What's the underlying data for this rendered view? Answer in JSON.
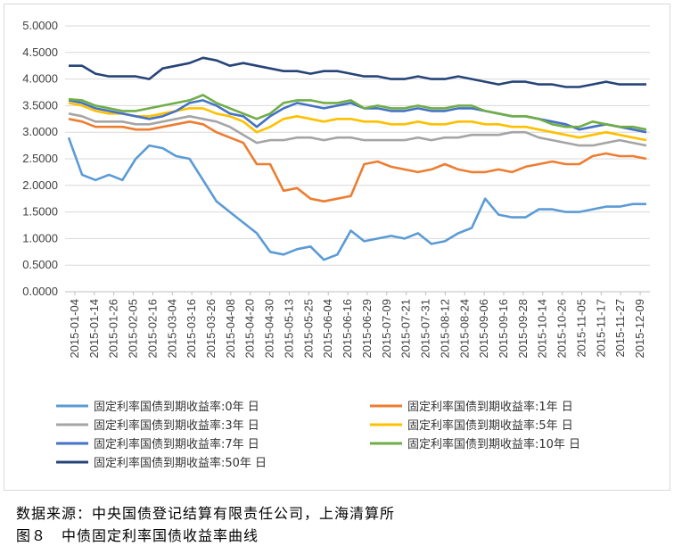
{
  "chart_data": {
    "type": "line",
    "title": "",
    "xlabel": "",
    "ylabel": "",
    "ylim": [
      0,
      5
    ],
    "yticks": [
      "0.0000",
      "0.5000",
      "1.0000",
      "1.5000",
      "2.0000",
      "2.5000",
      "3.0000",
      "3.5000",
      "4.0000",
      "4.5000",
      "5.0000"
    ],
    "grid": "horizontal",
    "legend_position": "bottom",
    "x_ticks": [
      "2015-01-04",
      "2015-01-14",
      "2015-01-26",
      "2015-02-05",
      "2015-02-16",
      "2015-03-04",
      "2015-03-16",
      "2015-03-26",
      "2015-04-08",
      "2015-04-20",
      "2015-04-30",
      "2015-05-13",
      "2015-05-25",
      "2015-06-04",
      "2015-06-16",
      "2015-06-29",
      "2015-07-09",
      "2015-07-21",
      "2015-07-31",
      "2015-08-12",
      "2015-08-24",
      "2015-09-06",
      "2015-09-16",
      "2015-09-28",
      "2015-10-14",
      "2015-10-26",
      "2015-11-05",
      "2015-11-17",
      "2015-11-27",
      "2015-12-09"
    ],
    "series": [
      {
        "name": "固定利率国债到期收益率:0年 日",
        "color": "#5b9bd5",
        "values": [
          2.9,
          2.2,
          2.1,
          2.2,
          2.1,
          2.5,
          2.75,
          2.7,
          2.55,
          2.5,
          2.1,
          1.7,
          1.5,
          1.3,
          1.1,
          0.75,
          0.7,
          0.8,
          0.85,
          0.6,
          0.7,
          1.15,
          0.95,
          1.0,
          1.05,
          1.0,
          1.1,
          0.9,
          0.95,
          1.1,
          1.2,
          1.75,
          1.45,
          1.4,
          1.4,
          1.55,
          1.55,
          1.5,
          1.5,
          1.55,
          1.6,
          1.6,
          1.65,
          1.65
        ]
      },
      {
        "name": "固定利率国债到期收益率:1年 日",
        "color": "#ed7d31",
        "values": [
          3.25,
          3.2,
          3.1,
          3.1,
          3.1,
          3.05,
          3.05,
          3.1,
          3.15,
          3.2,
          3.15,
          3.0,
          2.9,
          2.8,
          2.4,
          2.4,
          1.9,
          1.95,
          1.75,
          1.7,
          1.75,
          1.8,
          2.4,
          2.45,
          2.35,
          2.3,
          2.25,
          2.3,
          2.4,
          2.3,
          2.25,
          2.25,
          2.3,
          2.25,
          2.35,
          2.4,
          2.45,
          2.4,
          2.4,
          2.55,
          2.6,
          2.55,
          2.55,
          2.5
        ]
      },
      {
        "name": "固定利率国债到期收益率:3年 日",
        "color": "#a5a5a5",
        "values": [
          3.35,
          3.3,
          3.2,
          3.2,
          3.2,
          3.15,
          3.15,
          3.2,
          3.25,
          3.3,
          3.25,
          3.2,
          3.1,
          2.95,
          2.8,
          2.85,
          2.85,
          2.9,
          2.9,
          2.85,
          2.9,
          2.9,
          2.85,
          2.85,
          2.85,
          2.85,
          2.9,
          2.85,
          2.9,
          2.9,
          2.95,
          2.95,
          2.95,
          3.0,
          3.0,
          2.9,
          2.85,
          2.8,
          2.75,
          2.75,
          2.8,
          2.85,
          2.8,
          2.75
        ]
      },
      {
        "name": "固定利率国债到期收益率:5年 日",
        "color": "#ffc000",
        "values": [
          3.55,
          3.5,
          3.4,
          3.35,
          3.35,
          3.3,
          3.3,
          3.35,
          3.4,
          3.45,
          3.45,
          3.35,
          3.3,
          3.2,
          3.0,
          3.1,
          3.25,
          3.3,
          3.25,
          3.2,
          3.25,
          3.25,
          3.2,
          3.2,
          3.15,
          3.15,
          3.2,
          3.15,
          3.15,
          3.2,
          3.2,
          3.15,
          3.15,
          3.1,
          3.1,
          3.05,
          3.0,
          2.95,
          2.9,
          2.95,
          3.0,
          2.95,
          2.9,
          2.85
        ]
      },
      {
        "name": "固定利率国债到期收益率:7年 日",
        "color": "#4472c4",
        "values": [
          3.6,
          3.55,
          3.45,
          3.4,
          3.35,
          3.3,
          3.25,
          3.3,
          3.4,
          3.55,
          3.6,
          3.5,
          3.35,
          3.3,
          3.1,
          3.3,
          3.45,
          3.55,
          3.5,
          3.45,
          3.5,
          3.55,
          3.45,
          3.45,
          3.4,
          3.4,
          3.45,
          3.4,
          3.4,
          3.45,
          3.45,
          3.4,
          3.35,
          3.3,
          3.3,
          3.25,
          3.2,
          3.15,
          3.05,
          3.1,
          3.15,
          3.1,
          3.05,
          3.0
        ]
      },
      {
        "name": "固定利率国债到期收益率:10年 日",
        "color": "#70ad47",
        "values": [
          3.62,
          3.6,
          3.5,
          3.45,
          3.4,
          3.4,
          3.45,
          3.5,
          3.55,
          3.6,
          3.7,
          3.55,
          3.45,
          3.35,
          3.25,
          3.35,
          3.55,
          3.6,
          3.6,
          3.55,
          3.55,
          3.6,
          3.45,
          3.5,
          3.45,
          3.45,
          3.5,
          3.45,
          3.45,
          3.5,
          3.5,
          3.4,
          3.35,
          3.3,
          3.3,
          3.25,
          3.15,
          3.1,
          3.1,
          3.2,
          3.15,
          3.1,
          3.1,
          3.05
        ]
      },
      {
        "name": "固定利率国债到期收益率:50年 日",
        "color": "#264478",
        "values": [
          4.25,
          4.25,
          4.1,
          4.05,
          4.05,
          4.05,
          4.0,
          4.2,
          4.25,
          4.3,
          4.4,
          4.35,
          4.25,
          4.3,
          4.25,
          4.2,
          4.15,
          4.15,
          4.1,
          4.15,
          4.15,
          4.1,
          4.05,
          4.05,
          4.0,
          4.0,
          4.05,
          4.0,
          4.0,
          4.05,
          4.0,
          3.95,
          3.9,
          3.95,
          3.95,
          3.9,
          3.9,
          3.85,
          3.85,
          3.9,
          3.95,
          3.9,
          3.9,
          3.9
        ]
      }
    ]
  },
  "footer": {
    "source": "数据来源：中央国债登记结算有限责任公司，上海清算所",
    "caption": "图８　中债固定利率国债收益率曲线"
  }
}
